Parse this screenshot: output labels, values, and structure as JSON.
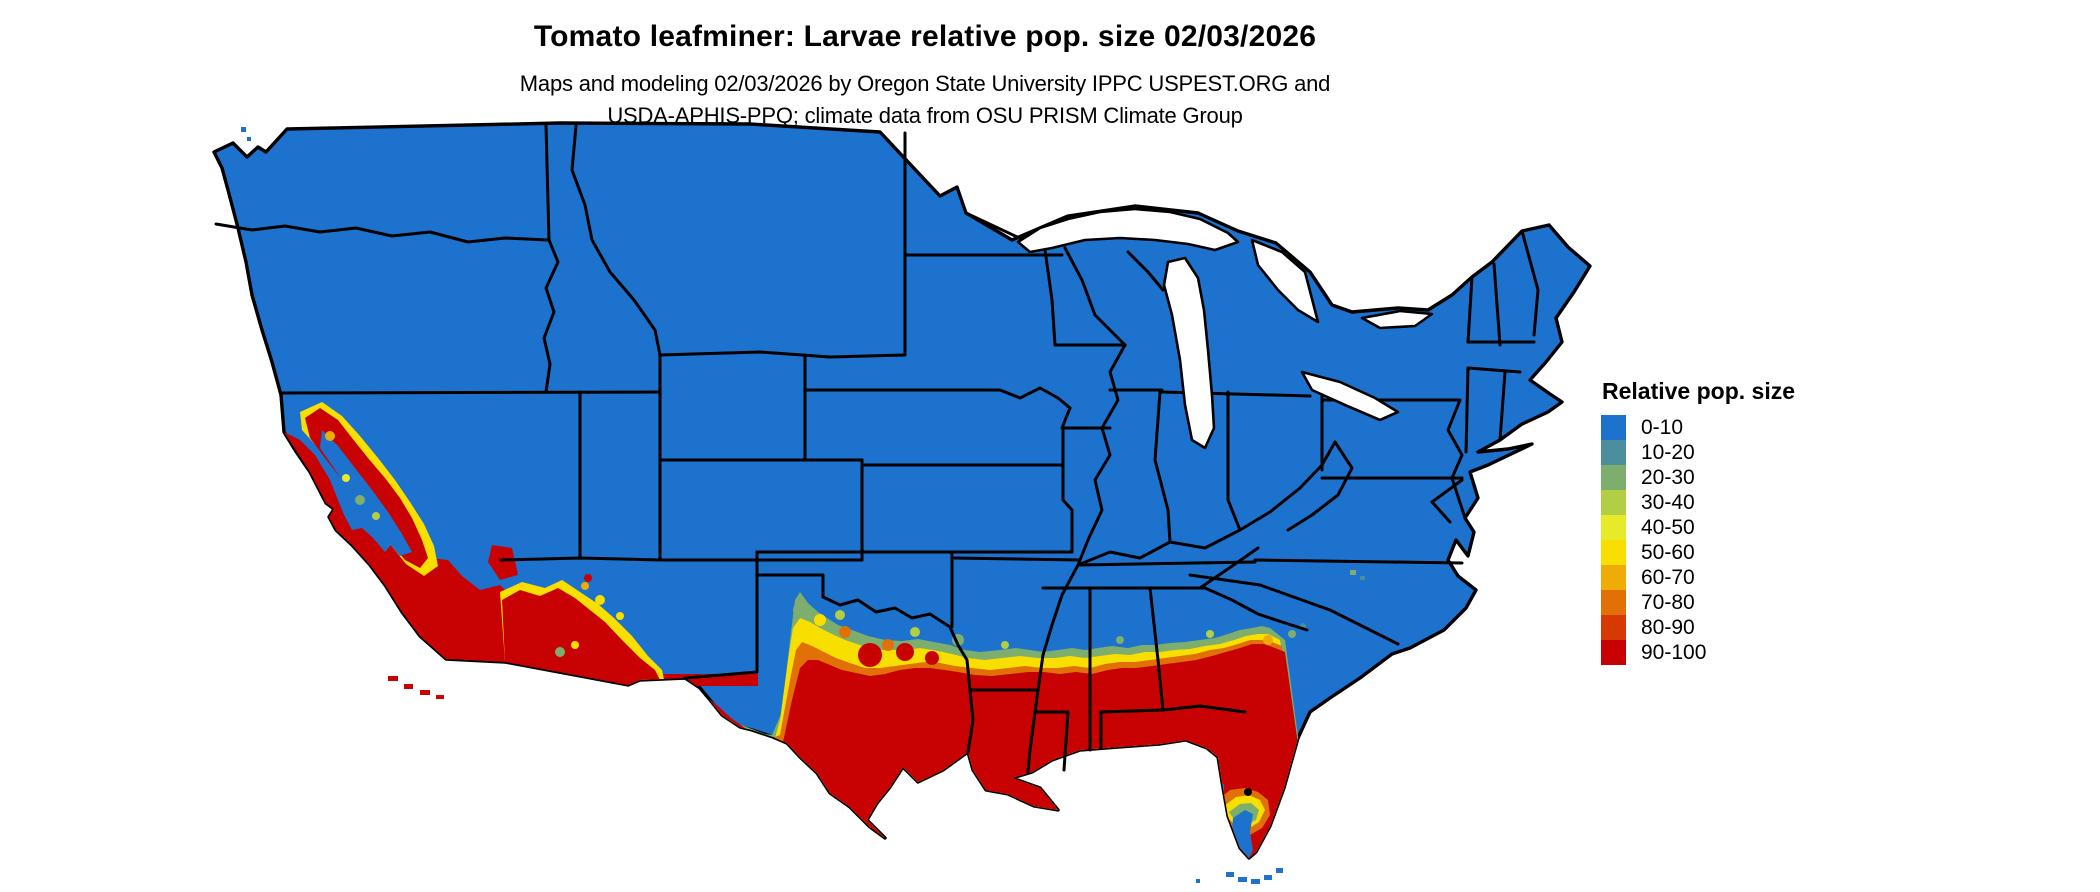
{
  "title": "Tomato leafminer: Larvae relative pop. size 02/03/2026",
  "subtitle": {
    "line1": "Maps and modeling 02/03/2026 by Oregon State University IPPC USPEST.ORG and",
    "line2": "USDA-APHIS-PPQ; climate data from OSU PRISM Climate Group"
  },
  "legend": {
    "title": "Relative pop. size",
    "items": [
      {
        "label": "0-10",
        "color": "#1c72cd"
      },
      {
        "label": "10-20",
        "color": "#4b8f9e"
      },
      {
        "label": "20-30",
        "color": "#7dae6e"
      },
      {
        "label": "30-40",
        "color": "#b1ce44"
      },
      {
        "label": "40-50",
        "color": "#e6ea28"
      },
      {
        "label": "50-60",
        "color": "#f8df00"
      },
      {
        "label": "60-70",
        "color": "#efab06"
      },
      {
        "label": "70-80",
        "color": "#e17106"
      },
      {
        "label": "80-90",
        "color": "#d63a02"
      },
      {
        "label": "90-100",
        "color": "#c80202"
      }
    ]
  },
  "map": {
    "region": "Contiguous United States",
    "base_land_color": "#1c72cd",
    "state_border_color": "#000000",
    "water_background_color": "#ffffff"
  }
}
